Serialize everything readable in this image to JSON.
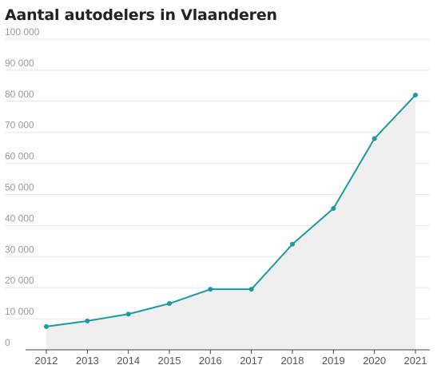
{
  "chart_data": {
    "type": "area",
    "title": "Aantal autodelers in Vlaanderen",
    "xlabel": "",
    "ylabel": "",
    "categories": [
      "2012",
      "2013",
      "2014",
      "2015",
      "2016",
      "2017",
      "2018",
      "2019",
      "2020",
      "2021"
    ],
    "series": [
      {
        "values": [
          7500,
          9300,
          11500,
          14900,
          19500,
          19500,
          34000,
          45500,
          68000,
          82000
        ]
      }
    ],
    "ylim": [
      0,
      100000
    ],
    "yticks": [
      0,
      10000,
      20000,
      30000,
      40000,
      50000,
      60000,
      70000,
      80000,
      90000,
      100000
    ],
    "ytick_labels": [
      "0",
      "10 000",
      "20 000",
      "30 000",
      "40 000",
      "50 000",
      "60 000",
      "70 000",
      "80 000",
      "90 000",
      "100 000"
    ],
    "grid": true,
    "legend": "none",
    "colors": {
      "line": "#1a9aa0",
      "area": "#efefef",
      "grid": "#e6e6e6",
      "axis": "#444444"
    }
  }
}
